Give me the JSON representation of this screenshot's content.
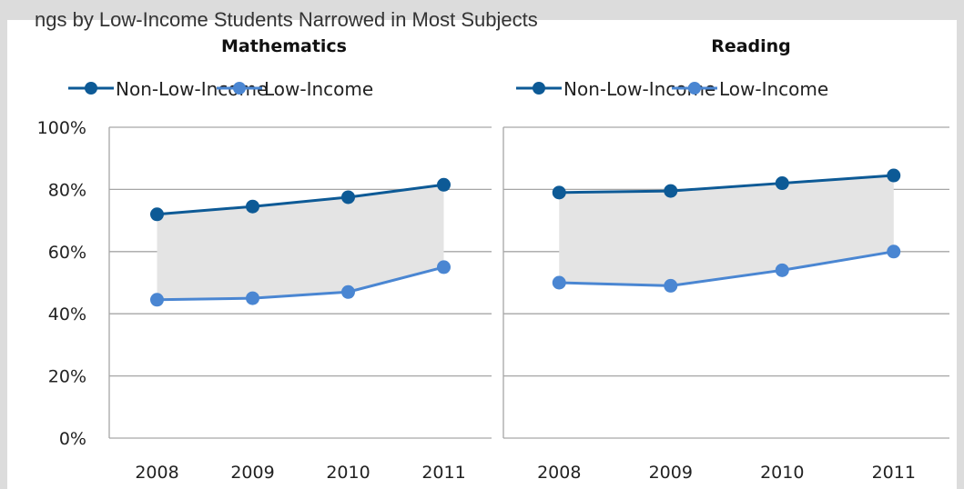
{
  "clipped_header": "ngs by Low-Income Students Narrowed in Most Subjects",
  "colors": {
    "non_low_income": "#0d5a96",
    "low_income": "#4a86d2",
    "band": "#e4e4e4",
    "grid": "#a6a6a6"
  },
  "chart_data": [
    {
      "type": "line",
      "title": "Mathematics",
      "categories": [
        "2008",
        "2009",
        "2010",
        "2011"
      ],
      "ylim": [
        0,
        100
      ],
      "yticks": [
        "0%",
        "20%",
        "40%",
        "60%",
        "80%",
        "100%"
      ],
      "grid": true,
      "legend": "top",
      "series": [
        {
          "name": "Non-Low-Income",
          "values": [
            72,
            74.5,
            77.5,
            81.5
          ]
        },
        {
          "name": "Low-Income",
          "values": [
            44.5,
            45,
            47,
            55
          ]
        }
      ]
    },
    {
      "type": "line",
      "title": "Reading",
      "categories": [
        "2008",
        "2009",
        "2010",
        "2011"
      ],
      "ylim": [
        0,
        100
      ],
      "yticks": [
        "0%",
        "20%",
        "40%",
        "60%",
        "80%",
        "100%"
      ],
      "grid": true,
      "legend": "top",
      "series": [
        {
          "name": "Non-Low-Income",
          "values": [
            79,
            79.5,
            82,
            84.5
          ]
        },
        {
          "name": "Low-Income",
          "values": [
            50,
            49,
            54,
            60
          ]
        }
      ]
    }
  ]
}
